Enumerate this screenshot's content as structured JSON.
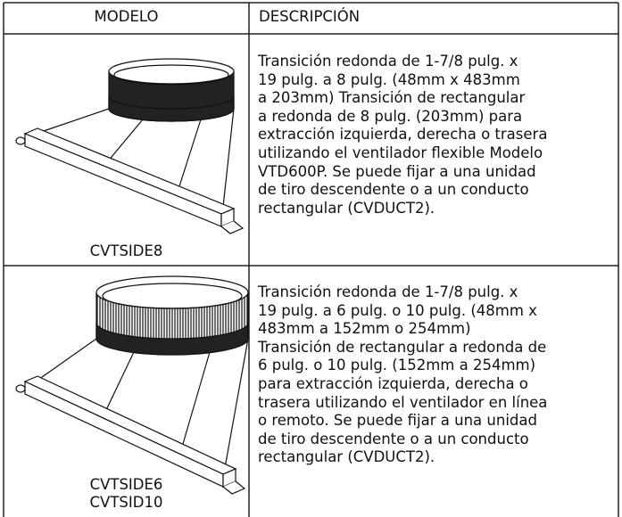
{
  "header": {
    "model": "MODELO",
    "description": "DESCRIPCIÓN"
  },
  "rows": [
    {
      "models": [
        "CVTSIDE8"
      ],
      "description": [
        "Transición redonda de 1-7/8 pulg. x",
        "19 pulg. a 8 pulg. (48mm x 483mm",
        "a 203mm) Transición de rectangular",
        "a redonda de 8 pulg. (203mm) para",
        "extracción izquierda, derecha o trasera",
        "utilizando el ventilador flexible Modelo",
        "VTD600P. Se puede fijar a una unidad",
        "de tiro descendente o a un conducto",
        "rectangular (CVDUCT2)."
      ]
    },
    {
      "models": [
        "CVTSIDE6",
        "CVTSID10"
      ],
      "description": [
        "Transición redonda de 1-7/8 pulg. x",
        "19 pulg. a 6 pulg. o 10 pulg. (48mm x",
        "483mm a 152mm o 254mm)",
        "Transición de rectangular a redonda de",
        "6 pulg. o 10 pulg. (152mm a 254mm)",
        "para extracción izquierda, derecha o",
        "trasera utilizando el ventilador en línea",
        "o remoto. Se puede fijar a una unidad",
        "de tiro descendente o a un conducto",
        "rectangular (CVDUCT2)."
      ]
    }
  ]
}
